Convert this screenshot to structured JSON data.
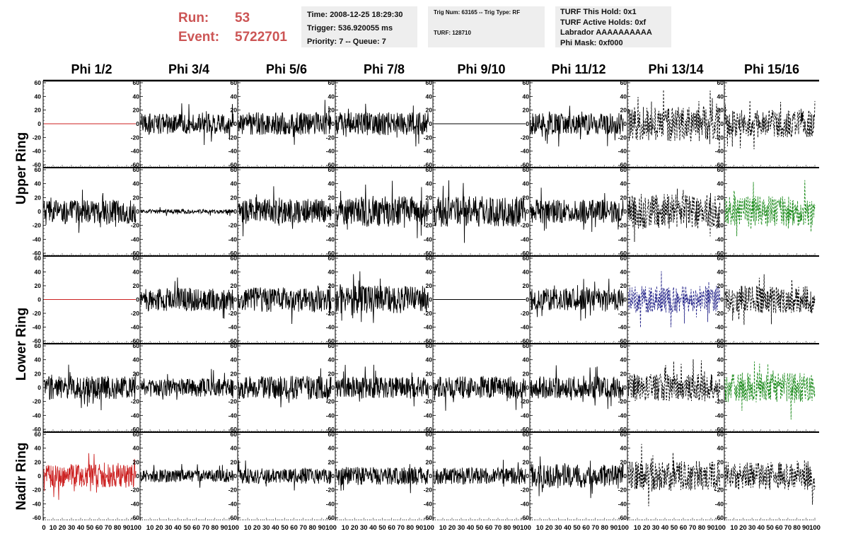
{
  "header": {
    "run_label": "Run:",
    "run_value": "53",
    "event_label": "Event:",
    "event_value": "5722701",
    "time": "Time: 2008-12-25 18:29:30",
    "trigger": "Trigger: 536.920055 ms",
    "priority": "Priority: 7 -- Queue: 7",
    "trig_num": "Trig Num: 63165 -- Trig Type: RF",
    "turf": "TURF: 128710",
    "turf_hold": "TURF This Hold: 0x1",
    "turf_active": "TURF Active Holds: 0xf",
    "labrador": "Labrador AAAAAAAAAA",
    "phi_mask": "Phi Mask: 0xf000"
  },
  "chart_data": {
    "type": "line",
    "columns": [
      "Phi 1/2",
      "Phi 3/4",
      "Phi 5/6",
      "Phi 7/8",
      "Phi 9/10",
      "Phi 11/12",
      "Phi 13/14",
      "Phi 15/16"
    ],
    "ring_labels": [
      "Upper Ring",
      "Lower Ring",
      "Nadir Ring"
    ],
    "ring_rows": [
      2,
      2,
      1
    ],
    "rows": 5,
    "ylim": [
      -60,
      60
    ],
    "yticks": [
      -60,
      -40,
      -20,
      0,
      20,
      40,
      60
    ],
    "xlim": [
      0,
      100
    ],
    "xticks": [
      0,
      10,
      20,
      30,
      40,
      50,
      60,
      70,
      80,
      90,
      100
    ],
    "colors": {
      "black": "#000000",
      "red": "#cc2222",
      "blue": "#2a2a8c",
      "green": "#1e8c1e"
    },
    "panels": [
      [
        {
          "style": "flat",
          "color": "red",
          "amplitude": 0
        },
        {
          "style": "solid",
          "color": "black",
          "amplitude": 15
        },
        {
          "style": "solid",
          "color": "black",
          "amplitude": 17
        },
        {
          "style": "solid",
          "color": "black",
          "amplitude": 17
        },
        {
          "style": "flat",
          "color": "black",
          "amplitude": 0
        },
        {
          "style": "solid",
          "color": "black",
          "amplitude": 16
        },
        {
          "style": "dashed",
          "color": "black",
          "amplitude": 25
        },
        {
          "style": "dashed",
          "color": "black",
          "amplitude": 20
        }
      ],
      [
        {
          "style": "solid",
          "color": "black",
          "amplitude": 17
        },
        {
          "style": "solid",
          "color": "black",
          "amplitude": 3
        },
        {
          "style": "solid",
          "color": "black",
          "amplitude": 18
        },
        {
          "style": "solid",
          "color": "black",
          "amplitude": 22
        },
        {
          "style": "solid",
          "color": "black",
          "amplitude": 22
        },
        {
          "style": "solid",
          "color": "black",
          "amplitude": 17
        },
        {
          "style": "dashed",
          "color": "black",
          "amplitude": 25
        },
        {
          "style": "dashed",
          "color": "green",
          "amplitude": 22
        }
      ],
      [
        {
          "style": "flat",
          "color": "red",
          "amplitude": 0
        },
        {
          "style": "solid",
          "color": "black",
          "amplitude": 17
        },
        {
          "style": "solid",
          "color": "black",
          "amplitude": 18
        },
        {
          "style": "solid",
          "color": "black",
          "amplitude": 20
        },
        {
          "style": "flat",
          "color": "black",
          "amplitude": 0
        },
        {
          "style": "solid",
          "color": "black",
          "amplitude": 16
        },
        {
          "style": "dashed",
          "color": "blue",
          "amplitude": 20
        },
        {
          "style": "dashed",
          "color": "black",
          "amplitude": 20
        }
      ],
      [
        {
          "style": "solid",
          "color": "black",
          "amplitude": 17
        },
        {
          "style": "solid",
          "color": "black",
          "amplitude": 13
        },
        {
          "style": "solid",
          "color": "black",
          "amplitude": 17
        },
        {
          "style": "solid",
          "color": "black",
          "amplitude": 16
        },
        {
          "style": "solid",
          "color": "black",
          "amplitude": 16
        },
        {
          "style": "solid",
          "color": "black",
          "amplitude": 16
        },
        {
          "style": "dashed",
          "color": "black",
          "amplitude": 20
        },
        {
          "style": "dashed",
          "color": "green",
          "amplitude": 22
        }
      ],
      [
        {
          "style": "solid",
          "color": "red",
          "amplitude": 17
        },
        {
          "style": "solid",
          "color": "black",
          "amplitude": 9
        },
        {
          "style": "solid",
          "color": "black",
          "amplitude": 11
        },
        {
          "style": "solid",
          "color": "black",
          "amplitude": 13
        },
        {
          "style": "solid",
          "color": "black",
          "amplitude": 12
        },
        {
          "style": "solid",
          "color": "black",
          "amplitude": 17
        },
        {
          "style": "dashed",
          "color": "black",
          "amplitude": 22
        },
        {
          "style": "dashed",
          "color": "black",
          "amplitude": 20
        }
      ]
    ]
  }
}
